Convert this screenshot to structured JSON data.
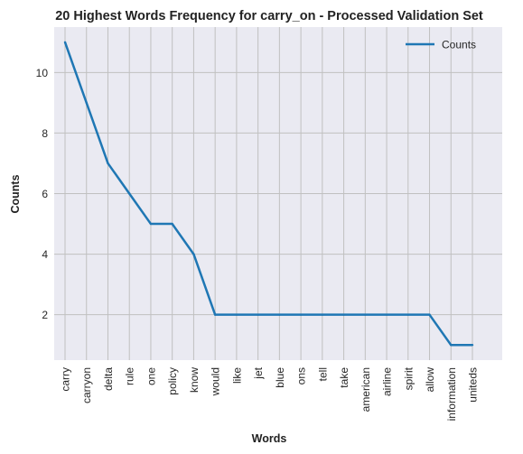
{
  "chart_data": {
    "type": "line",
    "title": "20 Highest Words Frequency for carry_on - Processed Validation Set",
    "xlabel": "Words",
    "ylabel": "Counts",
    "categories": [
      "carry",
      "carryon",
      "delta",
      "rule",
      "one",
      "policy",
      "know",
      "would",
      "like",
      "jet",
      "blue",
      "ons",
      "tell",
      "take",
      "american",
      "airline",
      "spirit",
      "allow",
      "information",
      "uniteds"
    ],
    "series": [
      {
        "name": "Counts",
        "values": [
          11,
          9,
          7,
          6,
          5,
          5,
          4,
          2,
          2,
          2,
          2,
          2,
          2,
          2,
          2,
          2,
          2,
          2,
          1,
          1
        ]
      }
    ],
    "ylim": [
      0.5,
      11.5
    ],
    "yticks": [
      2,
      4,
      6,
      8,
      10
    ],
    "grid": true,
    "legend_position": "top-right",
    "line_color": "#1f77b4",
    "background_color": "#eaeaf2",
    "grid_color": "#c0c0c0"
  }
}
